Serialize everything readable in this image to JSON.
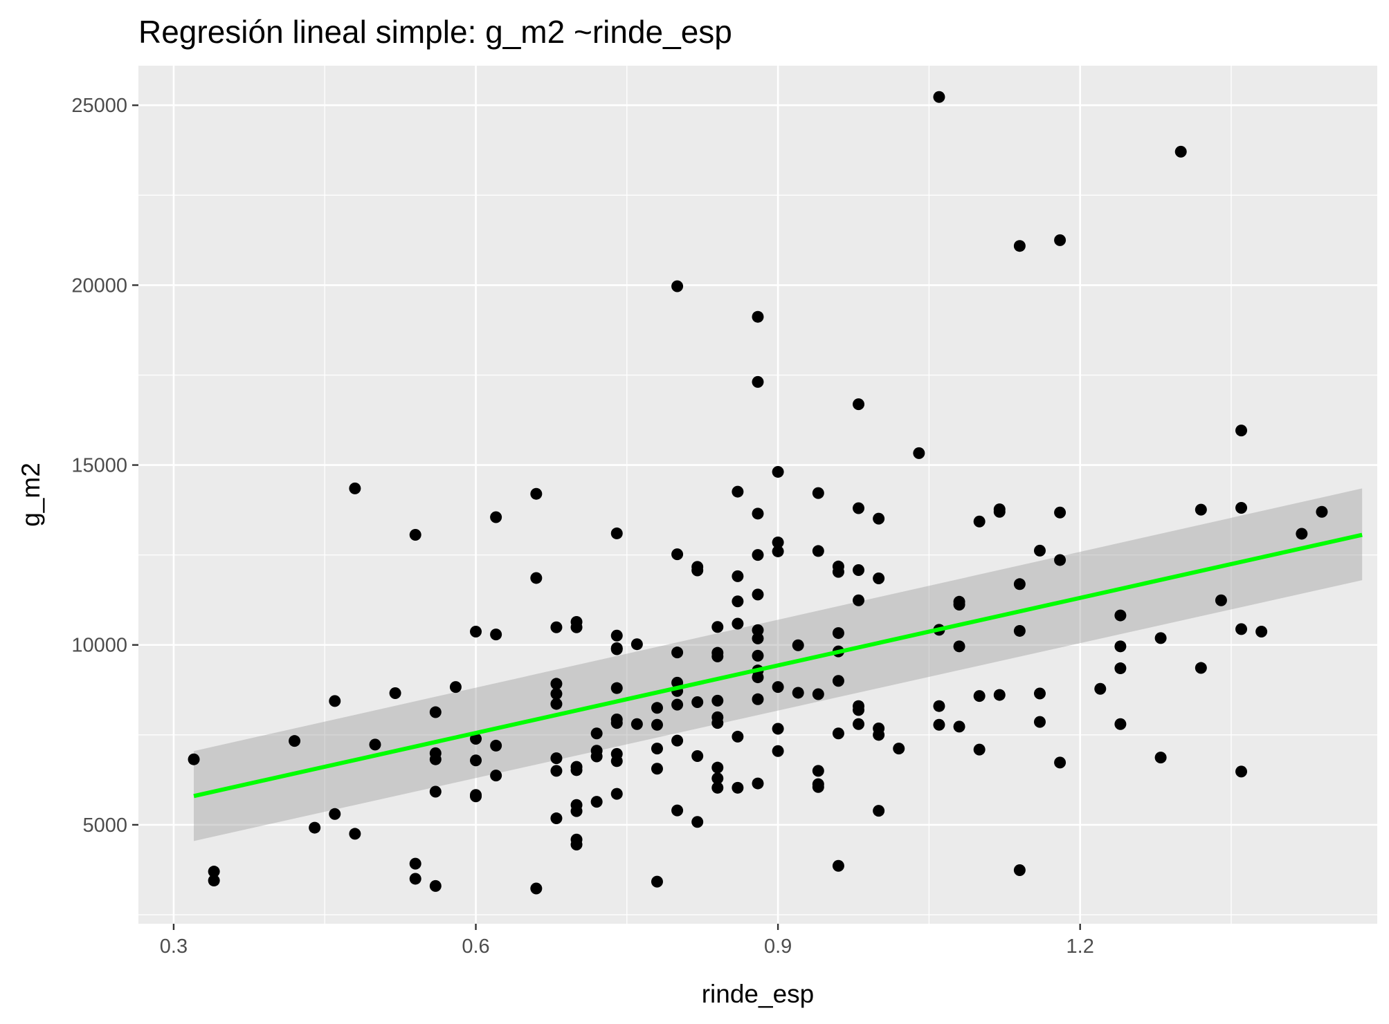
{
  "colors": {
    "panel_background": "#ebebeb",
    "grid_line": "#ffffff",
    "point": "#000000",
    "fit_line": "#00ff00",
    "confidence_band": "#999999",
    "tick_text": "#4d4d4d"
  },
  "chart_data": {
    "type": "scatter",
    "title": "Regresión lineal simple:  g_m2 ~rinde_esp",
    "xlabel": "rinde_esp",
    "ylabel": "g_m2",
    "xlim": [
      0.265,
      1.495
    ],
    "ylim": [
      2250,
      26100
    ],
    "x_ticks": [
      0.3,
      0.6,
      0.9,
      1.2
    ],
    "x_tick_labels": [
      "0.3",
      "0.6",
      "0.9",
      "1.2"
    ],
    "y_ticks": [
      5000,
      10000,
      15000,
      20000,
      25000
    ],
    "y_tick_labels": [
      "5000",
      "10000",
      "15000",
      "20000",
      "25000"
    ],
    "grid": true,
    "legend": "none",
    "regression": {
      "x": [
        0.32,
        1.48
      ],
      "y": [
        5800,
        13060
      ],
      "band_lower": [
        4550,
        11800
      ],
      "band_upper": [
        7050,
        14350
      ]
    },
    "points": [
      [
        0.32,
        6820
      ],
      [
        0.34,
        3700
      ],
      [
        0.34,
        3450
      ],
      [
        0.42,
        7330
      ],
      [
        0.44,
        4920
      ],
      [
        0.46,
        8440
      ],
      [
        0.46,
        5300
      ],
      [
        0.48,
        14350
      ],
      [
        0.48,
        4750
      ],
      [
        0.5,
        7230
      ],
      [
        0.52,
        8660
      ],
      [
        0.54,
        13060
      ],
      [
        0.54,
        3920
      ],
      [
        0.54,
        3500
      ],
      [
        0.56,
        8130
      ],
      [
        0.56,
        6990
      ],
      [
        0.56,
        6820
      ],
      [
        0.56,
        5920
      ],
      [
        0.56,
        3300
      ],
      [
        0.58,
        8830
      ],
      [
        0.6,
        10370
      ],
      [
        0.6,
        7390
      ],
      [
        0.6,
        6790
      ],
      [
        0.6,
        5830
      ],
      [
        0.6,
        5790
      ],
      [
        0.62,
        13550
      ],
      [
        0.62,
        10290
      ],
      [
        0.62,
        7200
      ],
      [
        0.62,
        6370
      ],
      [
        0.66,
        14200
      ],
      [
        0.66,
        11860
      ],
      [
        0.66,
        3230
      ],
      [
        0.68,
        10490
      ],
      [
        0.68,
        8920
      ],
      [
        0.68,
        8640
      ],
      [
        0.68,
        8360
      ],
      [
        0.68,
        6850
      ],
      [
        0.68,
        6500
      ],
      [
        0.68,
        5180
      ],
      [
        0.7,
        10640
      ],
      [
        0.7,
        10490
      ],
      [
        0.7,
        6610
      ],
      [
        0.7,
        6520
      ],
      [
        0.7,
        5550
      ],
      [
        0.7,
        5380
      ],
      [
        0.7,
        4590
      ],
      [
        0.7,
        4450
      ],
      [
        0.72,
        7540
      ],
      [
        0.72,
        7060
      ],
      [
        0.72,
        6900
      ],
      [
        0.72,
        5640
      ],
      [
        0.74,
        13100
      ],
      [
        0.74,
        10260
      ],
      [
        0.74,
        9910
      ],
      [
        0.74,
        9880
      ],
      [
        0.74,
        8800
      ],
      [
        0.74,
        7930
      ],
      [
        0.74,
        7830
      ],
      [
        0.74,
        6970
      ],
      [
        0.74,
        6770
      ],
      [
        0.74,
        5860
      ],
      [
        0.76,
        10020
      ],
      [
        0.76,
        7800
      ],
      [
        0.78,
        8250
      ],
      [
        0.78,
        7780
      ],
      [
        0.78,
        7120
      ],
      [
        0.78,
        6560
      ],
      [
        0.78,
        3420
      ],
      [
        0.8,
        19970
      ],
      [
        0.8,
        12520
      ],
      [
        0.8,
        9790
      ],
      [
        0.8,
        8950
      ],
      [
        0.8,
        8720
      ],
      [
        0.8,
        8340
      ],
      [
        0.8,
        7340
      ],
      [
        0.8,
        5400
      ],
      [
        0.82,
        12170
      ],
      [
        0.82,
        12070
      ],
      [
        0.82,
        8410
      ],
      [
        0.82,
        6910
      ],
      [
        0.82,
        5080
      ],
      [
        0.84,
        10500
      ],
      [
        0.84,
        9780
      ],
      [
        0.84,
        9680
      ],
      [
        0.84,
        8450
      ],
      [
        0.84,
        7990
      ],
      [
        0.84,
        7830
      ],
      [
        0.84,
        6590
      ],
      [
        0.84,
        6290
      ],
      [
        0.84,
        6030
      ],
      [
        0.86,
        14260
      ],
      [
        0.86,
        11910
      ],
      [
        0.86,
        11210
      ],
      [
        0.86,
        10590
      ],
      [
        0.86,
        7450
      ],
      [
        0.86,
        6030
      ],
      [
        0.88,
        19120
      ],
      [
        0.88,
        17310
      ],
      [
        0.88,
        13650
      ],
      [
        0.88,
        12500
      ],
      [
        0.88,
        11400
      ],
      [
        0.88,
        10410
      ],
      [
        0.88,
        10180
      ],
      [
        0.88,
        9700
      ],
      [
        0.88,
        9290
      ],
      [
        0.88,
        9100
      ],
      [
        0.88,
        8490
      ],
      [
        0.88,
        6150
      ],
      [
        0.9,
        14810
      ],
      [
        0.9,
        12850
      ],
      [
        0.9,
        12600
      ],
      [
        0.9,
        8830
      ],
      [
        0.9,
        7670
      ],
      [
        0.9,
        7050
      ],
      [
        0.92,
        9990
      ],
      [
        0.92,
        8670
      ],
      [
        0.94,
        14220
      ],
      [
        0.94,
        12610
      ],
      [
        0.94,
        8630
      ],
      [
        0.94,
        6500
      ],
      [
        0.94,
        6130
      ],
      [
        0.94,
        6050
      ],
      [
        0.96,
        12180
      ],
      [
        0.96,
        12030
      ],
      [
        0.96,
        10330
      ],
      [
        0.96,
        9820
      ],
      [
        0.96,
        9000
      ],
      [
        0.96,
        7540
      ],
      [
        0.96,
        3860
      ],
      [
        0.98,
        16690
      ],
      [
        0.98,
        13800
      ],
      [
        0.98,
        12080
      ],
      [
        0.98,
        11240
      ],
      [
        0.98,
        8300
      ],
      [
        0.98,
        8190
      ],
      [
        0.98,
        7800
      ],
      [
        1.0,
        13510
      ],
      [
        1.0,
        11850
      ],
      [
        1.0,
        7680
      ],
      [
        1.0,
        7500
      ],
      [
        1.0,
        5390
      ],
      [
        1.02,
        7120
      ],
      [
        1.04,
        15330
      ],
      [
        1.06,
        25230
      ],
      [
        1.06,
        10420
      ],
      [
        1.06,
        8300
      ],
      [
        1.06,
        7780
      ],
      [
        1.08,
        11200
      ],
      [
        1.08,
        11120
      ],
      [
        1.08,
        9960
      ],
      [
        1.08,
        7730
      ],
      [
        1.1,
        13430
      ],
      [
        1.1,
        8580
      ],
      [
        1.1,
        7090
      ],
      [
        1.12,
        13770
      ],
      [
        1.12,
        13700
      ],
      [
        1.12,
        8610
      ],
      [
        1.14,
        21090
      ],
      [
        1.14,
        11690
      ],
      [
        1.14,
        10390
      ],
      [
        1.14,
        3740
      ],
      [
        1.16,
        12620
      ],
      [
        1.16,
        8650
      ],
      [
        1.16,
        7860
      ],
      [
        1.18,
        21250
      ],
      [
        1.18,
        13680
      ],
      [
        1.18,
        12360
      ],
      [
        1.18,
        6730
      ],
      [
        1.22,
        8780
      ],
      [
        1.24,
        10820
      ],
      [
        1.24,
        9960
      ],
      [
        1.24,
        9350
      ],
      [
        1.24,
        7800
      ],
      [
        1.28,
        10190
      ],
      [
        1.28,
        6870
      ],
      [
        1.3,
        23710
      ],
      [
        1.32,
        13760
      ],
      [
        1.32,
        9360
      ],
      [
        1.34,
        11240
      ],
      [
        1.36,
        15960
      ],
      [
        1.36,
        13810
      ],
      [
        1.36,
        10440
      ],
      [
        1.36,
        6480
      ],
      [
        1.38,
        10370
      ],
      [
        1.42,
        13090
      ],
      [
        1.44,
        13700
      ]
    ]
  }
}
